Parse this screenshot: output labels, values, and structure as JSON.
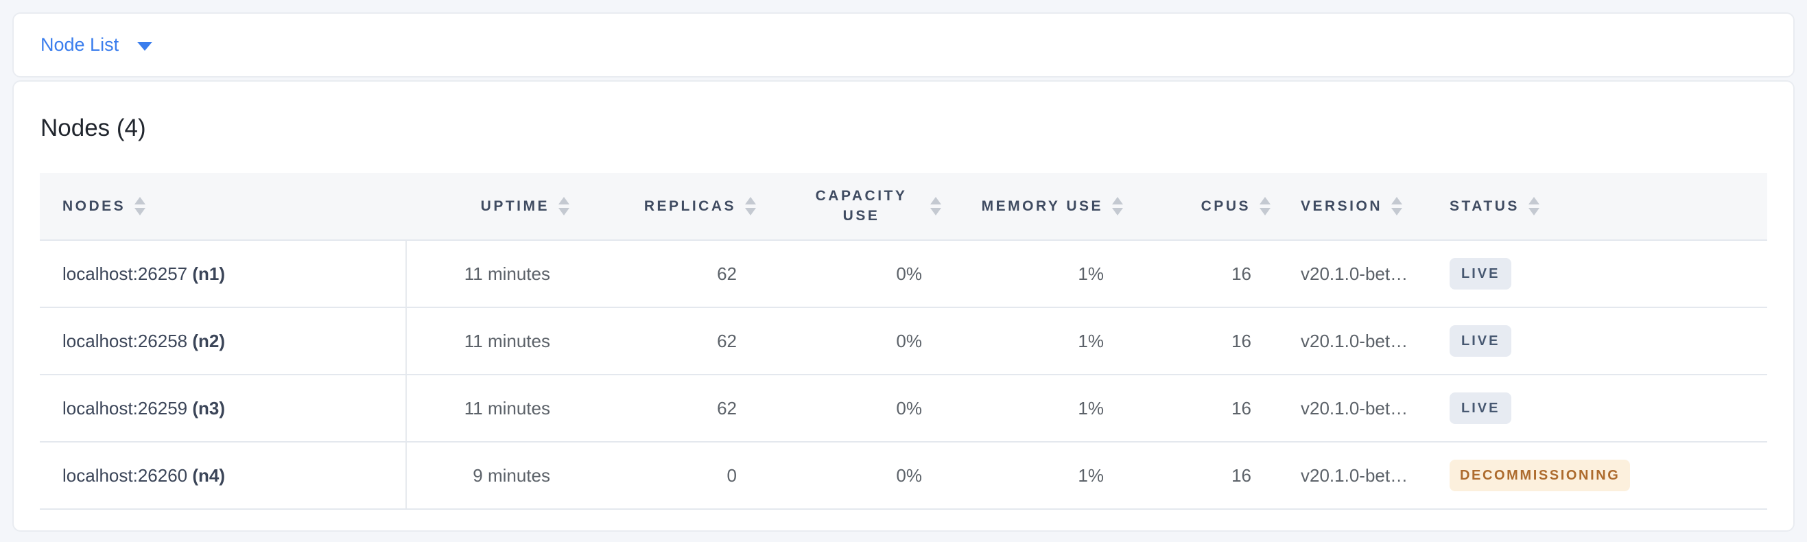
{
  "view_selector": {
    "label": "Node List",
    "caret_icon": "caret-down-icon"
  },
  "page_title": "Nodes (4)",
  "table": {
    "sort_icon": "sort-arrows-icon",
    "columns": [
      {
        "key": "nodes",
        "label": "NODES",
        "align": "left"
      },
      {
        "key": "uptime",
        "label": "UPTIME",
        "align": "right"
      },
      {
        "key": "replicas",
        "label": "REPLICAS",
        "align": "right"
      },
      {
        "key": "capacity",
        "label": "CAPACITY USE",
        "align": "right"
      },
      {
        "key": "memory",
        "label": "MEMORY USE",
        "align": "right"
      },
      {
        "key": "cpus",
        "label": "CPUS",
        "align": "right"
      },
      {
        "key": "version",
        "label": "VERSION",
        "align": "left"
      },
      {
        "key": "status",
        "label": "STATUS",
        "align": "left"
      }
    ],
    "rows": [
      {
        "address": "localhost:26257",
        "node_id": "(n1)",
        "uptime": "11 minutes",
        "replicas": "62",
        "capacity": "0%",
        "memory": "1%",
        "cpus": "16",
        "version": "v20.1.0-bet…",
        "status": "LIVE",
        "status_type": "live"
      },
      {
        "address": "localhost:26258",
        "node_id": "(n2)",
        "uptime": "11 minutes",
        "replicas": "62",
        "capacity": "0%",
        "memory": "1%",
        "cpus": "16",
        "version": "v20.1.0-bet…",
        "status": "LIVE",
        "status_type": "live"
      },
      {
        "address": "localhost:26259",
        "node_id": "(n3)",
        "uptime": "11 minutes",
        "replicas": "62",
        "capacity": "0%",
        "memory": "1%",
        "cpus": "16",
        "version": "v20.1.0-bet…",
        "status": "LIVE",
        "status_type": "live"
      },
      {
        "address": "localhost:26260",
        "node_id": "(n4)",
        "uptime": "9 minutes",
        "replicas": "0",
        "capacity": "0%",
        "memory": "1%",
        "cpus": "16",
        "version": "v20.1.0-bet…",
        "status": "DECOMMISSIONING",
        "status_type": "decommissioning"
      }
    ]
  },
  "colors": {
    "accent_blue": "#3a7ded",
    "status_live_bg": "#e7ebf2",
    "status_live_text": "#475871",
    "status_decommissioning_bg": "#fcf0dd",
    "status_decommissioning_text": "#ad6b2d"
  }
}
